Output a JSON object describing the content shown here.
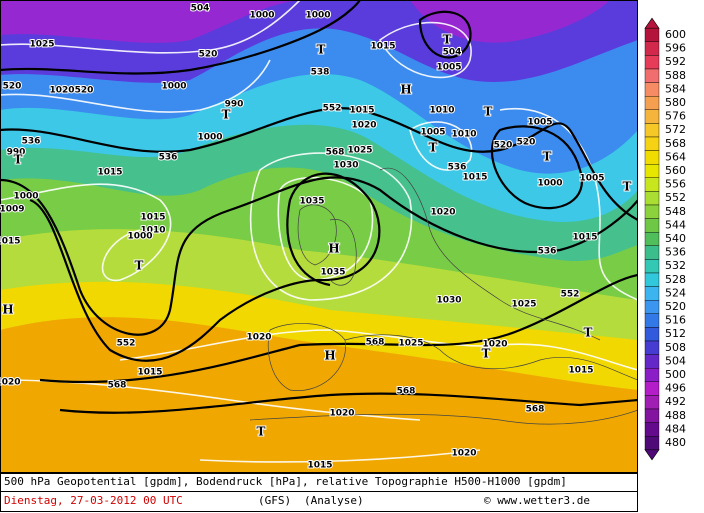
{
  "map_labels": [
    "504",
    "1000",
    "1000",
    "1025",
    "520",
    "T",
    "1015",
    "T",
    "504",
    "1005",
    "520",
    "1020",
    "520",
    "1000",
    "538",
    "H",
    "990",
    "T",
    "1015",
    "1010",
    "T",
    "1005",
    "1000",
    "552",
    "1020",
    "1005",
    "1010",
    "520",
    "520",
    "T",
    "536",
    "990",
    "T",
    "536",
    "568",
    "1025",
    "1030",
    "T",
    "536",
    "1015",
    "1000",
    "1005",
    "T",
    "1015",
    "1000",
    "1035",
    "1009",
    "1015",
    "1010",
    "1000",
    "T",
    "1020",
    "H",
    "1015",
    "536",
    "1035",
    "1030",
    "1025",
    "552",
    "T",
    "552",
    "1020",
    "568",
    "1025",
    "1020",
    "T",
    "H",
    "1015",
    "568",
    "568",
    "568",
    "1020",
    "T",
    "1015",
    "1020",
    "H",
    "1020",
    "1015",
    "1015"
  ],
  "colorbar": {
    "ticks": [
      600,
      596,
      592,
      588,
      584,
      580,
      576,
      572,
      568,
      564,
      560,
      556,
      552,
      548,
      544,
      540,
      536,
      532,
      528,
      524,
      520,
      516,
      512,
      508,
      504,
      500,
      496,
      492,
      488,
      484,
      480
    ],
    "colors": [
      "#b4143c",
      "#d2284b",
      "#e63c5a",
      "#f06e6e",
      "#f58c64",
      "#f5a050",
      "#f5b43c",
      "#f5c828",
      "#f5d214",
      "#f0dc00",
      "#e6e600",
      "#c8e61e",
      "#aade32",
      "#8cd23c",
      "#6ec846",
      "#50be5a",
      "#3cbe8c",
      "#32c8b4",
      "#32c8dc",
      "#3cb4f0",
      "#3c96f0",
      "#3278e6",
      "#325adc",
      "#463cd2",
      "#6428c8",
      "#8c1ec8",
      "#b41ec8",
      "#a01eb4",
      "#8214a0",
      "#640a8c",
      "#500a78"
    ]
  },
  "footer": {
    "description": "500 hPa Geopotential [gpdm], Bodendruck [hPa], relative Topographie H500-H1000 [gpdm]",
    "date": "Dienstag, 27-03-2012  00 UTC",
    "model": "(GFS)",
    "run": "(Analyse)",
    "source": "© www.wetter3.de"
  }
}
